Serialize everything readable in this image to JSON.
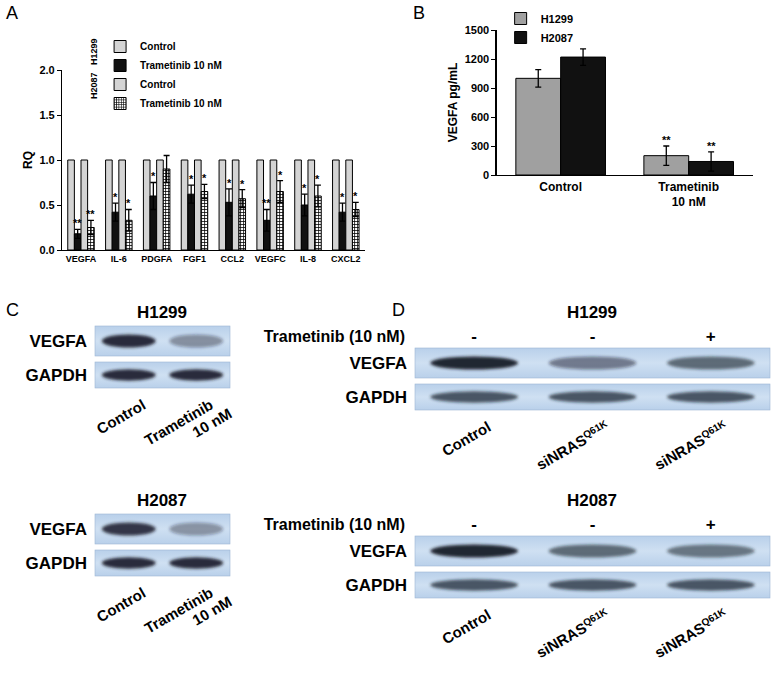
{
  "chart_data": [
    {
      "label": "A",
      "type": "bar",
      "ylabel": "RQ",
      "categories": [
        "VEGFA",
        "IL-6",
        "PDGFA",
        "FGF1",
        "CCL2",
        "VEGFC",
        "IL-8",
        "CXCL2"
      ],
      "series": [
        {
          "name": "Control",
          "group": "H1299",
          "color": "#d4d4d4",
          "values": [
            1,
            1,
            1,
            1,
            1,
            1,
            1,
            1
          ]
        },
        {
          "name": "Trametinib 10 nM",
          "group": "H1299",
          "color": "#111111",
          "values": [
            0.18,
            0.42,
            0.6,
            0.62,
            0.53,
            0.33,
            0.5,
            0.42
          ],
          "errors": [
            0.05,
            0.1,
            0.15,
            0.1,
            0.15,
            0.12,
            0.12,
            0.1
          ],
          "significance": [
            "**",
            "*",
            "*",
            "*",
            "*",
            "**",
            "*",
            "*"
          ]
        },
        {
          "name": "Control",
          "group": "H2087",
          "color": "#d4d4d4",
          "values": [
            1,
            1,
            1,
            1,
            1,
            1,
            1,
            1
          ]
        },
        {
          "name": "Trametinib 10 nM",
          "group": "H2087",
          "color": "#ffffff",
          "marker": "checkered",
          "values": [
            0.25,
            0.33,
            0.9,
            0.65,
            0.57,
            0.65,
            0.6,
            0.45
          ],
          "errors": [
            0.08,
            0.12,
            0.15,
            0.08,
            0.1,
            0.12,
            0.12,
            0.08
          ],
          "significance": [
            "**",
            "*",
            null,
            "*",
            "*",
            "*",
            "*",
            "*"
          ]
        }
      ],
      "ylim": [
        0,
        2
      ],
      "yticks": [
        {
          "value": 0,
          "label": "0.0"
        },
        {
          "value": 0.5,
          "label": "0.5"
        },
        {
          "value": 1,
          "label": "1.0"
        },
        {
          "value": 1.5,
          "label": "1.5"
        },
        {
          "value": 2,
          "label": "2.0"
        }
      ],
      "grid": false,
      "legend": "upper left"
    },
    {
      "label": "B",
      "type": "bar",
      "ylabel": "VEGFA pg/mL",
      "categories": [
        "Control",
        "Trametinib\n10 nM"
      ],
      "series": [
        {
          "name": "H1299",
          "color": "#a0a0a0",
          "values": [
            1000,
            200
          ],
          "errors": [
            90,
            100
          ],
          "significance": [
            null,
            "**"
          ]
        },
        {
          "name": "H2087",
          "color": "#111111",
          "values": [
            1220,
            140
          ],
          "errors": [
            85,
            100
          ],
          "significance": [
            null,
            "**"
          ]
        }
      ],
      "ylim": [
        0,
        1500
      ],
      "yticks": [
        0,
        300,
        600,
        900,
        1200,
        1500
      ],
      "grid": false,
      "legend": "upper left"
    }
  ],
  "blots": [
    {
      "label": "C",
      "panels": [
        {
          "title": "H1299",
          "rows": [
            {
              "name": "VEGFA",
              "intensity": [
                0.9,
                0.4
              ]
            },
            {
              "name": "GAPDH",
              "intensity": [
                0.9,
                0.9
              ]
            }
          ],
          "lanes": [
            "Control",
            "Trametinib\n10 nM"
          ]
        },
        {
          "title": "H2087",
          "rows": [
            {
              "name": "VEGFA",
              "intensity": [
                0.85,
                0.38
              ]
            },
            {
              "name": "GAPDH",
              "intensity": [
                0.9,
                0.9
              ]
            }
          ],
          "lanes": [
            "Control",
            "Trametinib\n10 nM"
          ]
        }
      ]
    },
    {
      "label": "D",
      "panels": [
        {
          "title": "H1299",
          "treatment": {
            "name": "Trametinib (10 nM)",
            "signs": [
              "-",
              "-",
              "+"
            ]
          },
          "rows": [
            {
              "name": "VEGFA",
              "intensity": [
                0.95,
                0.5,
                0.6
              ]
            },
            {
              "name": "GAPDH",
              "intensity": [
                0.7,
                0.7,
                0.7
              ]
            }
          ],
          "lanes": [
            "Control",
            {
              "text": "siNRAS",
              "sup": "Q61K"
            },
            {
              "text": "siNRAS",
              "sup": "Q61K"
            }
          ]
        },
        {
          "title": "H2087",
          "treatment": {
            "name": "Trametinib (10 nM)",
            "signs": [
              "-",
              "-",
              "+"
            ]
          },
          "rows": [
            {
              "name": "VEGFA",
              "intensity": [
                0.95,
                0.6,
                0.55
              ]
            },
            {
              "name": "GAPDH",
              "intensity": [
                0.7,
                0.7,
                0.7
              ]
            }
          ],
          "lanes": [
            "Control",
            {
              "text": "siNRAS",
              "sup": "Q61K"
            },
            {
              "text": "siNRAS",
              "sup": "Q61K"
            }
          ]
        }
      ]
    }
  ]
}
